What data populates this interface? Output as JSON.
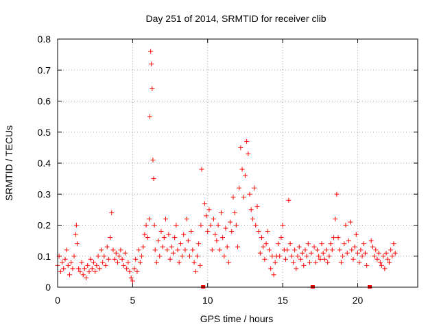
{
  "chart_data": {
    "type": "scatter",
    "title": "Day 251 of 2014, SRMTID for receiver clib",
    "xlabel": "GPS time / hours",
    "ylabel": "SRMTID / TECUs",
    "xlim": [
      0,
      24
    ],
    "ylim": [
      0,
      0.8
    ],
    "x_ticks": [
      0,
      5,
      10,
      15,
      20
    ],
    "y_ticks": [
      0,
      0.1,
      0.2,
      0.3,
      0.4,
      0.5,
      0.6,
      0.7,
      0.8
    ],
    "x_tick_labels": [
      "0",
      "5",
      "10",
      "15",
      "20"
    ],
    "y_tick_labels": [
      "0",
      "0.1",
      "0.2",
      "0.3",
      "0.4",
      "0.5",
      "0.6",
      "0.7",
      "0.8"
    ],
    "grid": true,
    "marker": "+",
    "color": "#ff0000",
    "data_gaps_x": [
      9.7,
      17.0,
      20.8
    ],
    "series": [
      {
        "name": "SRMTID",
        "x": [
          0.0,
          0.1,
          0.2,
          0.3,
          0.4,
          0.5,
          0.6,
          0.7,
          0.8,
          0.9,
          1.0,
          1.1,
          1.2,
          1.25,
          1.3,
          1.4,
          1.5,
          1.6,
          1.7,
          1.8,
          1.9,
          2.0,
          2.1,
          2.2,
          2.3,
          2.4,
          2.5,
          2.6,
          2.7,
          2.8,
          2.9,
          3.0,
          3.1,
          3.2,
          3.3,
          3.4,
          3.5,
          3.6,
          3.7,
          3.8,
          3.9,
          4.0,
          4.1,
          4.2,
          4.3,
          4.4,
          4.5,
          4.6,
          4.7,
          4.8,
          4.9,
          5.0,
          5.1,
          5.2,
          5.3,
          5.4,
          5.5,
          5.6,
          5.7,
          5.8,
          5.9,
          6.0,
          6.1,
          6.15,
          6.2,
          6.25,
          6.3,
          6.35,
          6.4,
          6.45,
          6.5,
          6.6,
          6.7,
          6.8,
          6.9,
          7.0,
          7.1,
          7.2,
          7.3,
          7.4,
          7.5,
          7.6,
          7.7,
          7.8,
          7.9,
          8.0,
          8.1,
          8.2,
          8.3,
          8.4,
          8.5,
          8.6,
          8.7,
          8.8,
          8.9,
          9.0,
          9.1,
          9.2,
          9.3,
          9.4,
          9.5,
          9.55,
          9.6,
          9.8,
          9.9,
          10.0,
          10.1,
          10.2,
          10.3,
          10.4,
          10.5,
          10.6,
          10.7,
          10.8,
          10.9,
          11.0,
          11.1,
          11.2,
          11.3,
          11.4,
          11.5,
          11.6,
          11.7,
          11.8,
          11.9,
          12.0,
          12.1,
          12.2,
          12.3,
          12.4,
          12.5,
          12.6,
          12.7,
          12.8,
          12.9,
          13.0,
          13.1,
          13.2,
          13.3,
          13.4,
          13.5,
          13.6,
          13.7,
          13.8,
          13.9,
          14.0,
          14.1,
          14.2,
          14.3,
          14.4,
          14.5,
          14.6,
          14.7,
          14.8,
          14.9,
          15.0,
          15.1,
          15.2,
          15.3,
          15.4,
          15.5,
          15.6,
          15.7,
          15.8,
          15.9,
          16.0,
          16.1,
          16.2,
          16.3,
          16.4,
          16.5,
          16.6,
          16.7,
          16.8,
          16.9,
          17.1,
          17.2,
          17.3,
          17.4,
          17.5,
          17.6,
          17.7,
          17.8,
          17.9,
          18.0,
          18.1,
          18.2,
          18.3,
          18.4,
          18.5,
          18.6,
          18.7,
          18.8,
          18.9,
          19.0,
          19.1,
          19.2,
          19.3,
          19.4,
          19.5,
          19.6,
          19.7,
          19.8,
          19.9,
          20.0,
          20.1,
          20.2,
          20.3,
          20.4,
          20.5,
          20.6,
          20.9,
          21.0,
          21.1,
          21.2,
          21.3,
          21.4,
          21.5,
          21.6,
          21.7,
          21.8,
          21.9,
          22.0,
          22.1,
          22.2,
          22.3,
          22.4,
          22.5
        ],
        "y": [
          0.07,
          0.1,
          0.05,
          0.08,
          0.06,
          0.09,
          0.12,
          0.07,
          0.04,
          0.08,
          0.06,
          0.1,
          0.17,
          0.2,
          0.14,
          0.06,
          0.05,
          0.08,
          0.04,
          0.06,
          0.03,
          0.07,
          0.05,
          0.09,
          0.06,
          0.08,
          0.05,
          0.07,
          0.1,
          0.06,
          0.12,
          0.08,
          0.1,
          0.07,
          0.13,
          0.09,
          0.16,
          0.24,
          0.12,
          0.09,
          0.11,
          0.08,
          0.1,
          0.12,
          0.09,
          0.07,
          0.11,
          0.06,
          0.08,
          0.05,
          0.03,
          0.02,
          0.06,
          0.09,
          0.05,
          0.12,
          0.08,
          0.1,
          0.13,
          0.17,
          0.2,
          0.16,
          0.22,
          0.55,
          0.76,
          0.72,
          0.64,
          0.41,
          0.35,
          0.2,
          0.12,
          0.08,
          0.15,
          0.1,
          0.18,
          0.13,
          0.16,
          0.22,
          0.12,
          0.17,
          0.09,
          0.13,
          0.11,
          0.16,
          0.2,
          0.12,
          0.08,
          0.14,
          0.1,
          0.17,
          0.12,
          0.22,
          0.15,
          0.1,
          0.18,
          0.12,
          0.08,
          0.05,
          0.1,
          0.14,
          0.07,
          0.2,
          0.38,
          0.27,
          0.23,
          0.18,
          0.25,
          0.2,
          0.12,
          0.22,
          0.17,
          0.15,
          0.2,
          0.12,
          0.24,
          0.16,
          0.1,
          0.19,
          0.13,
          0.08,
          0.21,
          0.18,
          0.29,
          0.24,
          0.2,
          0.13,
          0.32,
          0.45,
          0.38,
          0.29,
          0.36,
          0.47,
          0.43,
          0.3,
          0.25,
          0.22,
          0.32,
          0.2,
          0.26,
          0.18,
          0.11,
          0.16,
          0.13,
          0.09,
          0.14,
          0.18,
          0.12,
          0.06,
          0.1,
          0.04,
          0.08,
          0.1,
          0.14,
          0.1,
          0.16,
          0.2,
          0.12,
          0.09,
          0.12,
          0.28,
          0.14,
          0.1,
          0.08,
          0.12,
          0.06,
          0.1,
          0.13,
          0.09,
          0.11,
          0.07,
          0.12,
          0.1,
          0.14,
          0.08,
          0.11,
          0.13,
          0.08,
          0.12,
          0.1,
          0.09,
          0.14,
          0.11,
          0.09,
          0.12,
          0.08,
          0.1,
          0.14,
          0.12,
          0.16,
          0.22,
          0.3,
          0.16,
          0.12,
          0.08,
          0.1,
          0.14,
          0.2,
          0.11,
          0.15,
          0.21,
          0.12,
          0.09,
          0.13,
          0.17,
          0.11,
          0.08,
          0.12,
          0.1,
          0.14,
          0.11,
          0.07,
          0.15,
          0.13,
          0.1,
          0.12,
          0.09,
          0.11,
          0.08,
          0.07,
          0.1,
          0.06,
          0.11,
          0.09,
          0.08,
          0.12,
          0.1,
          0.14,
          0.11
        ]
      }
    ]
  }
}
